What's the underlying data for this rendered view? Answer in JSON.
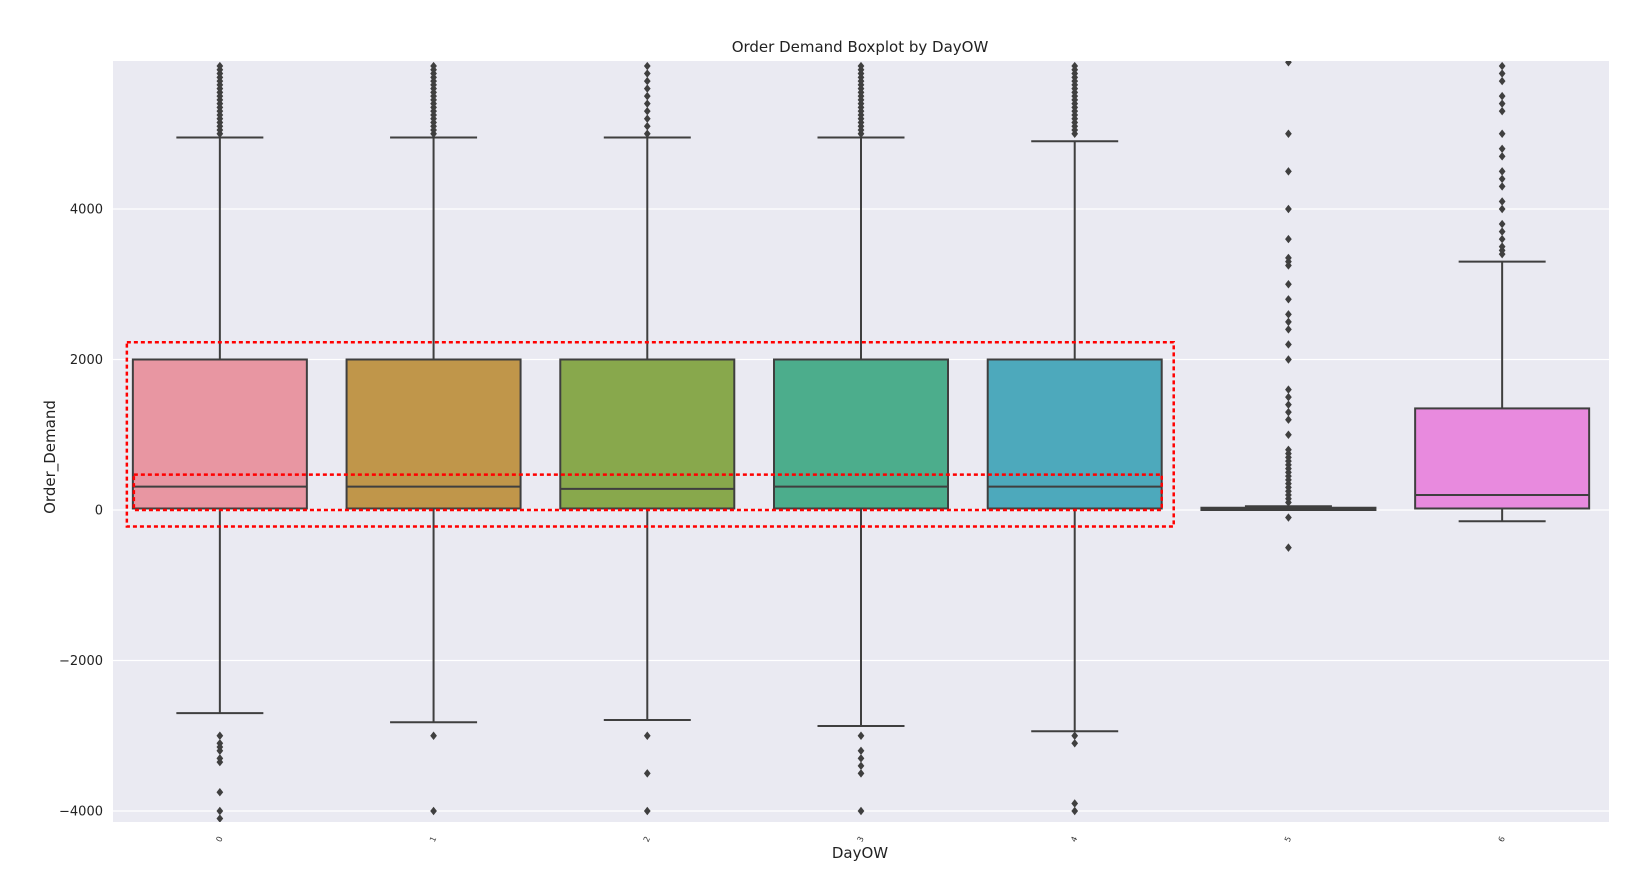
{
  "chart_data": {
    "type": "boxplot",
    "title": "Order Demand Boxplot by DayOW",
    "xlabel": "DayOW",
    "ylabel": "Order_Demand",
    "ylim": [
      -4100,
      5950
    ],
    "yticks": [
      -4000,
      -2000,
      0,
      2000,
      4000
    ],
    "ytick_labels": [
      "−4000",
      "−2000",
      "0",
      "2000",
      "4000"
    ],
    "grid": true,
    "categories": [
      "0",
      "1",
      "2",
      "3",
      "4",
      "5",
      "6"
    ],
    "boxes": [
      {
        "category": "0",
        "whisker_low": -2700,
        "q1": 20,
        "median": 310,
        "q3": 2000,
        "whisker_high": 4950,
        "color": "#e896a2",
        "outliers": [
          5000,
          5050,
          5100,
          5150,
          5200,
          5250,
          5300,
          5350,
          5400,
          5450,
          5500,
          5550,
          5600,
          5650,
          5700,
          5750,
          5800,
          5850,
          5900,
          -3000,
          -3100,
          -3150,
          -3200,
          -3300,
          -3350,
          -3750,
          -4000,
          -4100
        ]
      },
      {
        "category": "1",
        "whisker_low": -2820,
        "q1": 20,
        "median": 310,
        "q3": 2000,
        "whisker_high": 4950,
        "color": "#c0964a",
        "outliers": [
          5000,
          5050,
          5100,
          5150,
          5200,
          5250,
          5300,
          5350,
          5400,
          5450,
          5500,
          5550,
          5600,
          5650,
          5700,
          5750,
          5800,
          5850,
          5900,
          -3000,
          -4000
        ]
      },
      {
        "category": "2",
        "whisker_low": -2790,
        "q1": 20,
        "median": 280,
        "q3": 2000,
        "whisker_high": 4950,
        "color": "#88a84c",
        "outliers": [
          5000,
          5100,
          5200,
          5300,
          5400,
          5500,
          5600,
          5700,
          5800,
          5900,
          -3000,
          -3500,
          -4000
        ]
      },
      {
        "category": "3",
        "whisker_low": -2870,
        "q1": 20,
        "median": 310,
        "q3": 2000,
        "whisker_high": 4950,
        "color": "#4cad8c",
        "outliers": [
          5000,
          5050,
          5100,
          5150,
          5200,
          5250,
          5300,
          5350,
          5400,
          5450,
          5500,
          5550,
          5600,
          5650,
          5700,
          5750,
          5800,
          5850,
          5900,
          -3000,
          -3200,
          -3300,
          -3400,
          -3500,
          -4000
        ]
      },
      {
        "category": "4",
        "whisker_low": -2940,
        "q1": 20,
        "median": 310,
        "q3": 2000,
        "whisker_high": 4900,
        "color": "#4da9bc",
        "outliers": [
          5000,
          5050,
          5100,
          5150,
          5200,
          5250,
          5300,
          5350,
          5400,
          5450,
          5500,
          5550,
          5600,
          5650,
          5700,
          5750,
          5800,
          5850,
          5900,
          -3000,
          -3100,
          -3900,
          -4000
        ]
      },
      {
        "category": "5",
        "whisker_low": 0,
        "q1": 0,
        "median": 10,
        "q3": 30,
        "whisker_high": 50,
        "color": "#9aa0e0",
        "outliers": [
          100,
          150,
          200,
          250,
          300,
          350,
          400,
          450,
          500,
          550,
          600,
          650,
          700,
          750,
          800,
          1000,
          1200,
          1300,
          1400,
          1500,
          1600,
          2000,
          2200,
          2400,
          2500,
          2600,
          2800,
          3000,
          3250,
          3300,
          3350,
          3600,
          4000,
          4500,
          5000,
          5950,
          -100,
          -500
        ]
      },
      {
        "category": "6",
        "whisker_low": -150,
        "q1": 20,
        "median": 200,
        "q3": 1350,
        "whisker_high": 3300,
        "color": "#e88ade",
        "outliers": [
          3400,
          3450,
          3500,
          3600,
          3700,
          3800,
          4000,
          4100,
          4300,
          4400,
          4500,
          4700,
          4800,
          5000,
          5300,
          5400,
          5500,
          5700,
          5800,
          5900
        ]
      }
    ]
  }
}
